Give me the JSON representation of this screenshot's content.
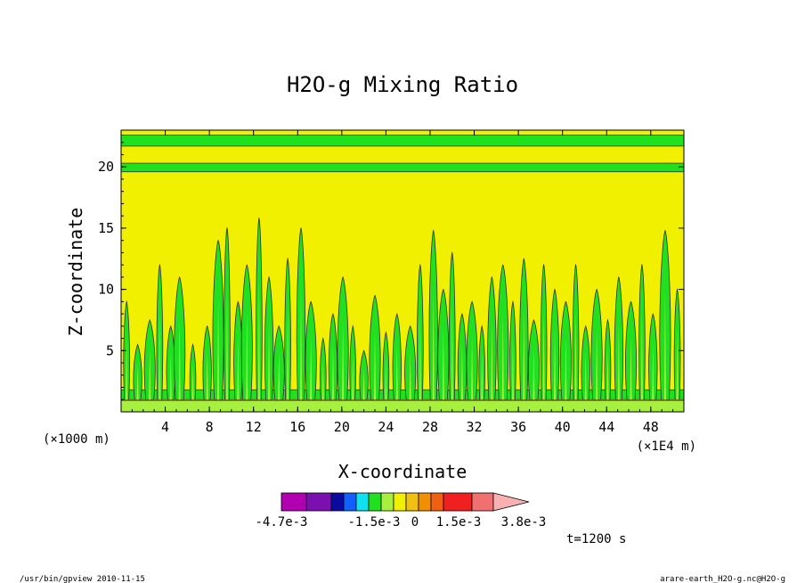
{
  "chart_data": {
    "type": "heatmap",
    "title": "H2O-g Mixing Ratio",
    "xlabel": "X-coordinate",
    "ylabel": "Z-coordinate",
    "x_unit_left": "(×1000 m)",
    "x_unit_right": "(×1E4 m)",
    "xlim": [
      0,
      51
    ],
    "ylim": [
      0,
      23
    ],
    "xticks": [
      "4",
      "8",
      "12",
      "16",
      "20",
      "24",
      "28",
      "32",
      "36",
      "40",
      "44",
      "48"
    ],
    "yticks": [
      "5",
      "10",
      "15",
      "20"
    ],
    "colorbar": {
      "colors": [
        "#b000b0",
        "#7a10b0",
        "#0a0aa0",
        "#1060ff",
        "#10e0f0",
        "#20e020",
        "#a8f040",
        "#f0f000",
        "#f0c010",
        "#f09000",
        "#f06010",
        "#f02020",
        "#f07070",
        "#f8b0b0"
      ],
      "labels": [
        "-4.7e-3",
        "-1.5e-3",
        "0",
        "1.5e-3",
        "3.8e-3"
      ],
      "extend": "max"
    },
    "bands": [
      {
        "z": [
          21.7,
          22.6
        ],
        "color": "#20e020"
      },
      {
        "z": [
          19.6,
          20.3
        ],
        "color": "#20e020"
      },
      {
        "z": [
          1.0,
          1.8
        ],
        "color": "#20e020"
      }
    ],
    "background_color": "#f0f000",
    "plumes": [
      {
        "x": 0.5,
        "top": 9.0
      },
      {
        "x": 1.5,
        "top": 5.5
      },
      {
        "x": 2.6,
        "top": 7.5
      },
      {
        "x": 3.5,
        "top": 12.0
      },
      {
        "x": 4.5,
        "top": 7.0
      },
      {
        "x": 5.3,
        "top": 11.0
      },
      {
        "x": 6.5,
        "top": 5.5
      },
      {
        "x": 7.8,
        "top": 7.0
      },
      {
        "x": 8.8,
        "top": 14.0
      },
      {
        "x": 9.6,
        "top": 15.0
      },
      {
        "x": 10.6,
        "top": 9.0
      },
      {
        "x": 11.4,
        "top": 12.0
      },
      {
        "x": 12.5,
        "top": 15.8
      },
      {
        "x": 13.4,
        "top": 11.0
      },
      {
        "x": 14.3,
        "top": 7.0
      },
      {
        "x": 15.1,
        "top": 12.5
      },
      {
        "x": 16.3,
        "top": 15.0
      },
      {
        "x": 17.2,
        "top": 9.0
      },
      {
        "x": 18.3,
        "top": 6.0
      },
      {
        "x": 19.2,
        "top": 8.0
      },
      {
        "x": 20.1,
        "top": 11.0
      },
      {
        "x": 21.0,
        "top": 7.0
      },
      {
        "x": 22.0,
        "top": 5.0
      },
      {
        "x": 23.0,
        "top": 9.5
      },
      {
        "x": 24.0,
        "top": 6.5
      },
      {
        "x": 25.0,
        "top": 8.0
      },
      {
        "x": 26.2,
        "top": 7.0
      },
      {
        "x": 27.1,
        "top": 12.0
      },
      {
        "x": 28.3,
        "top": 14.8
      },
      {
        "x": 29.2,
        "top": 10.0
      },
      {
        "x": 30.0,
        "top": 13.0
      },
      {
        "x": 30.9,
        "top": 8.0
      },
      {
        "x": 31.8,
        "top": 9.0
      },
      {
        "x": 32.7,
        "top": 7.0
      },
      {
        "x": 33.6,
        "top": 11.0
      },
      {
        "x": 34.6,
        "top": 12.0
      },
      {
        "x": 35.5,
        "top": 9.0
      },
      {
        "x": 36.5,
        "top": 12.5
      },
      {
        "x": 37.4,
        "top": 7.5
      },
      {
        "x": 38.3,
        "top": 12.0
      },
      {
        "x": 39.3,
        "top": 10.0
      },
      {
        "x": 40.3,
        "top": 9.0
      },
      {
        "x": 41.2,
        "top": 12.0
      },
      {
        "x": 42.1,
        "top": 7.0
      },
      {
        "x": 43.1,
        "top": 10.0
      },
      {
        "x": 44.1,
        "top": 7.5
      },
      {
        "x": 45.1,
        "top": 11.0
      },
      {
        "x": 46.2,
        "top": 9.0
      },
      {
        "x": 47.2,
        "top": 12.0
      },
      {
        "x": 48.2,
        "top": 8.0
      },
      {
        "x": 49.3,
        "top": 14.8
      },
      {
        "x": 50.4,
        "top": 10.0
      }
    ]
  },
  "time_label": "t=1200 s",
  "footer": {
    "left": "/usr/bin/gpview  2010-11-15",
    "right": "arare-earth_H2O-g.nc@H2O-g"
  }
}
